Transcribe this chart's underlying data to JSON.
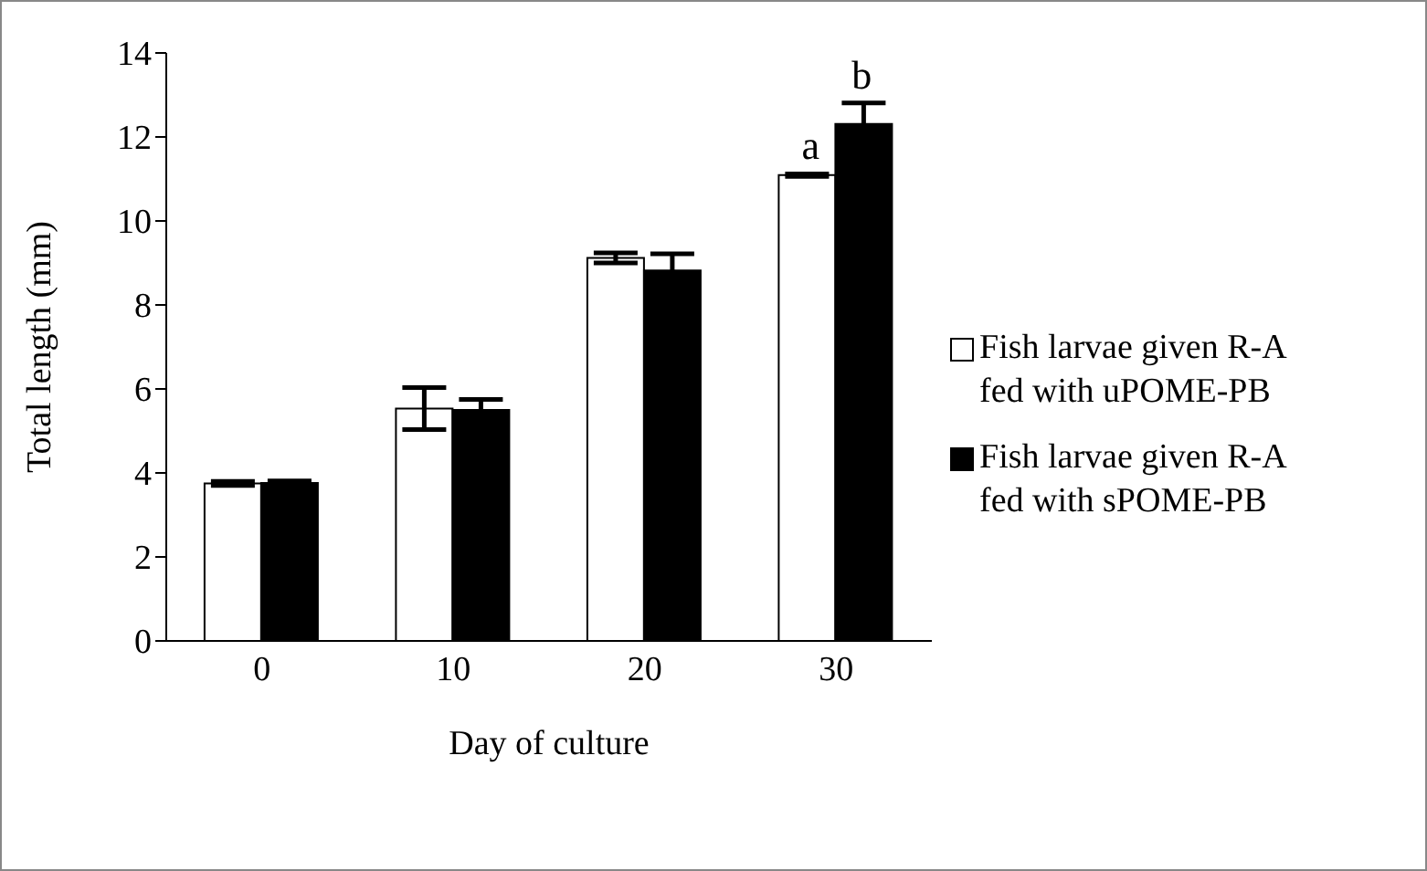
{
  "chart_data": {
    "type": "bar",
    "xlabel": "Day of culture",
    "ylabel": "Total length (mm)",
    "categories": [
      "0",
      "10",
      "20",
      "30"
    ],
    "series": [
      {
        "name": "Fish larvae given R-A fed with uPOME-PB",
        "color": "#ffffff",
        "values": [
          3.75,
          5.53,
          9.12,
          11.09
        ],
        "errors": [
          0.05,
          0.5,
          0.12,
          0.03
        ]
      },
      {
        "name": "Fish larvae given R-A fed with sPOME-PB",
        "color": "#000000",
        "values": [
          3.76,
          5.5,
          8.82,
          12.31
        ],
        "errors": [
          0.05,
          0.25,
          0.4,
          0.5
        ]
      }
    ],
    "ylim": [
      0,
      14
    ],
    "yticks": [
      0,
      2,
      4,
      6,
      8,
      10,
      12,
      14
    ],
    "grid": false,
    "legend": "right",
    "annotations": [
      {
        "text": "a",
        "x": "30",
        "y": 11.12
      },
      {
        "text": "b",
        "x": "30",
        "y": 12.81
      }
    ]
  }
}
